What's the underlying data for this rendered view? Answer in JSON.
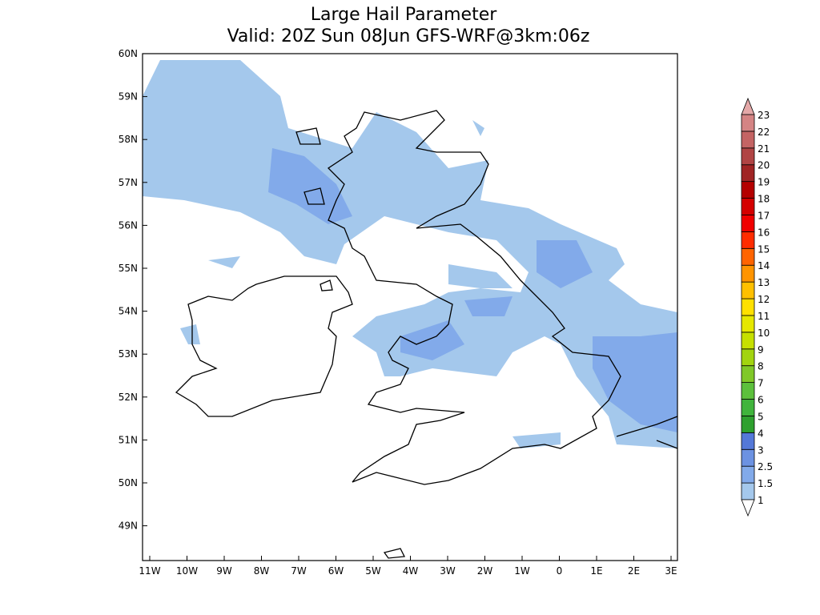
{
  "title": "Large Hail Parameter",
  "subtitle": "Valid: 20Z Sun 08Jun GFS-WRF@3km:06z",
  "map": {
    "lat_labels": [
      "60N",
      "59N",
      "58N",
      "57N",
      "56N",
      "55N",
      "54N",
      "53N",
      "52N",
      "51N",
      "50N",
      "49N"
    ],
    "lon_labels": [
      "11W",
      "10W",
      "9W",
      "8W",
      "7W",
      "6W",
      "5W",
      "4W",
      "3W",
      "2W",
      "1W",
      "0",
      "1E",
      "2E",
      "3E"
    ]
  },
  "colorbar": {
    "labels": [
      "1",
      "1.5",
      "2.5",
      "3",
      "4",
      "5",
      "6",
      "7",
      "8",
      "9",
      "10",
      "11",
      "12",
      "13",
      "14",
      "15",
      "16",
      "17",
      "18",
      "19",
      "20",
      "21",
      "22",
      "23"
    ],
    "colors": [
      "#a4c8ec",
      "#82aaea",
      "#6c92e2",
      "#5478d8",
      "#2ea02e",
      "#40b43c",
      "#5cc03c",
      "#80c828",
      "#a2d410",
      "#c6e000",
      "#e6e800",
      "#ffe000",
      "#ffc000",
      "#ff9400",
      "#ff6400",
      "#ff2c00",
      "#f00000",
      "#d40000",
      "#b40000",
      "#a02424",
      "#b04444",
      "#c46464",
      "#d48484"
    ],
    "under_color": "#ffffff",
    "over_color": "#e4a8a8"
  }
}
